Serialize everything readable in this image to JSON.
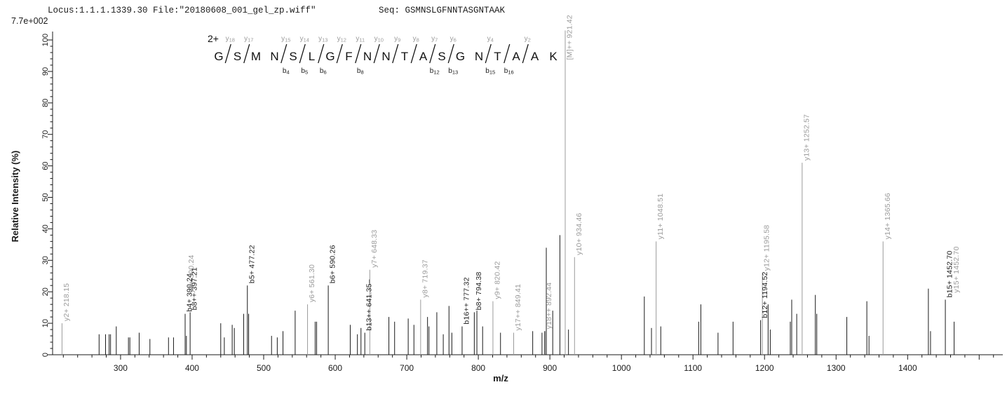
{
  "header": {
    "locus_file": "Locus:1.1.1.1339.30 File:\"20180608_001_gel_zp.wiff\"",
    "seq_label": "Seq: GSMNSLGFNNTASGNTAAK",
    "max_intensity": "7.7e+002"
  },
  "precursor_charge": "2+",
  "sequence": {
    "residues": [
      {
        "aa": "G"
      },
      {
        "aa": "S",
        "y": "y18"
      },
      {
        "aa": "M",
        "y": "y17"
      },
      {
        "aa": "N"
      },
      {
        "aa": "S",
        "y": "y15",
        "b": "b4"
      },
      {
        "aa": "L",
        "y": "y14",
        "b": "b5"
      },
      {
        "aa": "G",
        "y": "y13",
        "b": "b6"
      },
      {
        "aa": "F",
        "y": "y12"
      },
      {
        "aa": "N",
        "y": "y11",
        "b": "b8"
      },
      {
        "aa": "N",
        "y": "y10"
      },
      {
        "aa": "T",
        "y": "y9"
      },
      {
        "aa": "A",
        "y": "y8"
      },
      {
        "aa": "S",
        "y": "y7",
        "b": "b12"
      },
      {
        "aa": "G",
        "y": "y6",
        "b": "b13"
      },
      {
        "aa": "N"
      },
      {
        "aa": "T",
        "y": "y4",
        "b": "b15"
      },
      {
        "aa": "A",
        "b": "b16"
      },
      {
        "aa": "A",
        "y": "y2"
      },
      {
        "aa": "K"
      }
    ]
  },
  "colors": {
    "axis": "#1a1a1a",
    "b_ion": "#1a1a1a",
    "unlabeled": "#1a1a1a",
    "y_ion": "#9b9b9b",
    "precursor": "#9b9b9b"
  },
  "chart_data": {
    "type": "bar",
    "subtype": "ms2-fragment-spectrum",
    "title": "",
    "xlabel": "m/z",
    "ylabel": "Relative  Intensity (%)",
    "xlim": [
      205,
      1533
    ],
    "ylim": [
      0,
      100
    ],
    "x_major_ticks": [
      300,
      400,
      500,
      600,
      700,
      800,
      900,
      1000,
      1100,
      1200,
      1300,
      1400
    ],
    "x_minor_step": 20,
    "y_major_ticks": [
      0,
      10,
      20,
      30,
      40,
      50,
      60,
      70,
      80,
      90,
      100
    ],
    "y_minor_step": 2,
    "grid": false,
    "peaks": [
      {
        "mz": 218.15,
        "intensity": 10,
        "ion": "y",
        "label": "y2+ 218.15"
      },
      {
        "mz": 270,
        "intensity": 6.5
      },
      {
        "mz": 279,
        "intensity": 6.5
      },
      {
        "mz": 284,
        "intensity": 6.5
      },
      {
        "mz": 286,
        "intensity": 6.5
      },
      {
        "mz": 294,
        "intensity": 9
      },
      {
        "mz": 311,
        "intensity": 5.5
      },
      {
        "mz": 313,
        "intensity": 5.5
      },
      {
        "mz": 326,
        "intensity": 7
      },
      {
        "mz": 341,
        "intensity": 5
      },
      {
        "mz": 367,
        "intensity": 5.5
      },
      {
        "mz": 374,
        "intensity": 5.5
      },
      {
        "mz": 390.24,
        "intensity": 13,
        "ion": "b",
        "label": "b4+ 390.24"
      },
      {
        "mz": 392,
        "intensity": 6
      },
      {
        "mz": 392.5,
        "intensity": 19,
        "ion": "y",
        "label": "y4+ 390.24",
        "line": false
      },
      {
        "mz": 397.21,
        "intensity": 13.5,
        "ion": "b",
        "label": "b8++ 397.21"
      },
      {
        "mz": 440,
        "intensity": 10
      },
      {
        "mz": 445,
        "intensity": 5.5
      },
      {
        "mz": 456,
        "intensity": 9.5
      },
      {
        "mz": 459,
        "intensity": 8.5
      },
      {
        "mz": 472,
        "intensity": 13
      },
      {
        "mz": 477.22,
        "intensity": 22,
        "ion": "b",
        "label": "b5+ 477.22"
      },
      {
        "mz": 479,
        "intensity": 13
      },
      {
        "mz": 511,
        "intensity": 6
      },
      {
        "mz": 519,
        "intensity": 5.5
      },
      {
        "mz": 527,
        "intensity": 7.5
      },
      {
        "mz": 544,
        "intensity": 14
      },
      {
        "mz": 561.3,
        "intensity": 16,
        "ion": "y",
        "label": "y6+ 561.30"
      },
      {
        "mz": 572,
        "intensity": 10.5
      },
      {
        "mz": 574,
        "intensity": 10.5
      },
      {
        "mz": 590.26,
        "intensity": 22,
        "ion": "b",
        "label": "b6+ 590.26"
      },
      {
        "mz": 621,
        "intensity": 9.5
      },
      {
        "mz": 631,
        "intensity": 6.5
      },
      {
        "mz": 636,
        "intensity": 8.5
      },
      {
        "mz": 641.35,
        "intensity": 7,
        "ion": "b",
        "label": "b13++ 641.35–"
      },
      {
        "mz": 648.33,
        "intensity": 27,
        "ion": "y",
        "label": "y7+ 648.33"
      },
      {
        "mz": 675,
        "intensity": 12
      },
      {
        "mz": 683,
        "intensity": 10.5
      },
      {
        "mz": 702,
        "intensity": 11.5
      },
      {
        "mz": 710,
        "intensity": 9.5
      },
      {
        "mz": 719.37,
        "intensity": 17.5,
        "ion": "y",
        "label": "y8+ 719.37"
      },
      {
        "mz": 729,
        "intensity": 12
      },
      {
        "mz": 731,
        "intensity": 9
      },
      {
        "mz": 742,
        "intensity": 13.5
      },
      {
        "mz": 751,
        "intensity": 6.5
      },
      {
        "mz": 759,
        "intensity": 15.5
      },
      {
        "mz": 763,
        "intensity": 7
      },
      {
        "mz": 777.32,
        "intensity": 9,
        "ion": "b",
        "label": "b16++ 777.32"
      },
      {
        "mz": 794.38,
        "intensity": 13.5,
        "ion": "b",
        "label": "b8+ 794.38"
      },
      {
        "mz": 798,
        "intensity": 14
      },
      {
        "mz": 806,
        "intensity": 9
      },
      {
        "mz": 820.42,
        "intensity": 17,
        "ion": "y",
        "label": "y9+ 820.42"
      },
      {
        "mz": 831,
        "intensity": 7
      },
      {
        "mz": 849.41,
        "intensity": 7,
        "ion": "y",
        "label": "y17++ 849.41"
      },
      {
        "mz": 876,
        "intensity": 7.5
      },
      {
        "mz": 889,
        "intensity": 7
      },
      {
        "mz": 892.44,
        "intensity": 7.5,
        "ion": "y",
        "label": "y18++ 892.44"
      },
      {
        "mz": 893,
        "intensity": 7.5
      },
      {
        "mz": 895,
        "intensity": 34
      },
      {
        "mz": 904,
        "intensity": 14
      },
      {
        "mz": 914,
        "intensity": 38
      },
      {
        "mz": 921.42,
        "intensity": 103,
        "ion": "M",
        "label": "[M]++ 921.42",
        "label_start": 93
      },
      {
        "mz": 926,
        "intensity": 8
      },
      {
        "mz": 934.46,
        "intensity": 31,
        "ion": "y",
        "label": "y10+ 934.46"
      },
      {
        "mz": 1032,
        "intensity": 18.5
      },
      {
        "mz": 1042,
        "intensity": 8.5
      },
      {
        "mz": 1048.51,
        "intensity": 36,
        "ion": "y",
        "label": "y11+ 1048.51"
      },
      {
        "mz": 1055,
        "intensity": 9
      },
      {
        "mz": 1108,
        "intensity": 10.5
      },
      {
        "mz": 1111,
        "intensity": 16
      },
      {
        "mz": 1135,
        "intensity": 7
      },
      {
        "mz": 1156,
        "intensity": 10.5
      },
      {
        "mz": 1194.52,
        "intensity": 11,
        "ion": "b",
        "label": "b12+ 1194.52"
      },
      {
        "mz": 1197,
        "intensity": 26,
        "ion": "y",
        "label": "y12+ 1195.58"
      },
      {
        "mz": 1205,
        "intensity": 16
      },
      {
        "mz": 1208,
        "intensity": 8
      },
      {
        "mz": 1236,
        "intensity": 10.5
      },
      {
        "mz": 1238,
        "intensity": 17.5
      },
      {
        "mz": 1245,
        "intensity": 13
      },
      {
        "mz": 1252.57,
        "intensity": 61,
        "ion": "y",
        "label": "y13+ 1252.57"
      },
      {
        "mz": 1271,
        "intensity": 19
      },
      {
        "mz": 1273,
        "intensity": 13
      },
      {
        "mz": 1315,
        "intensity": 12
      },
      {
        "mz": 1343,
        "intensity": 17
      },
      {
        "mz": 1346,
        "intensity": 6
      },
      {
        "mz": 1365.66,
        "intensity": 36,
        "ion": "y",
        "label": "y14+ 1365.66"
      },
      {
        "mz": 1429,
        "intensity": 21
      },
      {
        "mz": 1432,
        "intensity": 7.5
      },
      {
        "mz": 1452.7,
        "intensity": 17.5,
        "ion": "b",
        "label": "b15+ 1452.70"
      },
      {
        "mz": 1462,
        "intensity": 19,
        "ion": "y",
        "label": "y15+ 1452.70",
        "line": false
      },
      {
        "mz": 1465,
        "intensity": 10.5
      }
    ]
  }
}
